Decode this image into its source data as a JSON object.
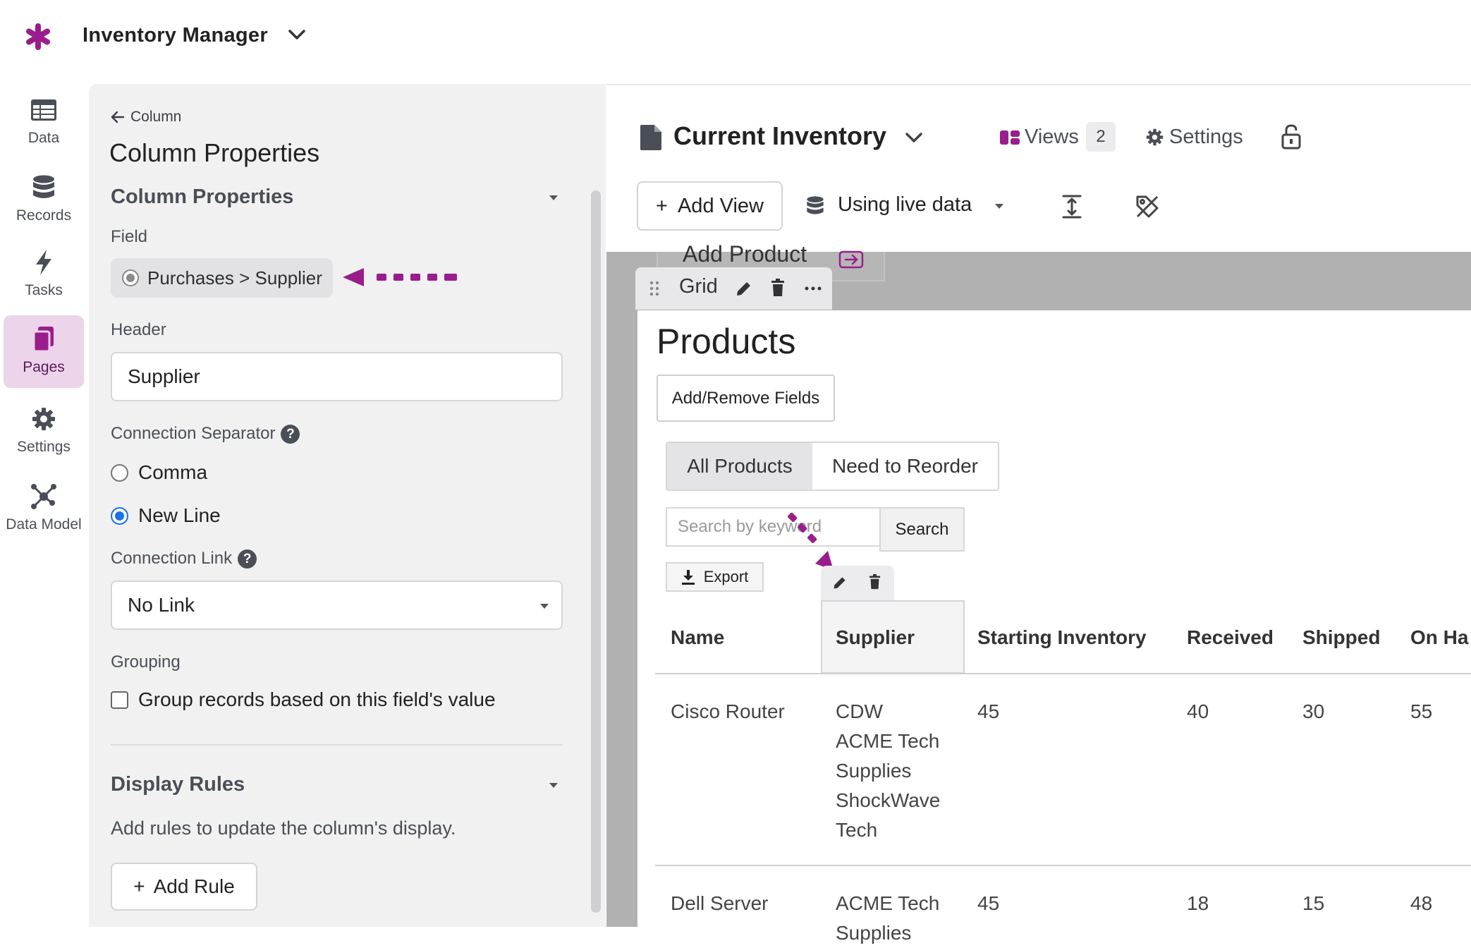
{
  "app": {
    "title": "Inventory Manager",
    "accent": "#9b1c8c"
  },
  "nav": {
    "items": [
      {
        "label": "Data",
        "icon": "table-icon"
      },
      {
        "label": "Records",
        "icon": "database-icon"
      },
      {
        "label": "Tasks",
        "icon": "bolt-icon"
      },
      {
        "label": "Pages",
        "icon": "pages-icon",
        "active": true
      },
      {
        "label": "Settings",
        "icon": "gear-icon"
      },
      {
        "label": "Data Model",
        "icon": "network-icon"
      }
    ]
  },
  "panel": {
    "breadcrumb": "Column",
    "title": "Column Properties",
    "section_title": "Column Properties",
    "field_label": "Field",
    "field_value": "Purchases > Supplier",
    "header_label": "Header",
    "header_value": "Supplier",
    "separator_label": "Connection Separator",
    "separator_options": [
      "Comma",
      "New Line"
    ],
    "separator_selected": "New Line",
    "link_label": "Connection Link",
    "link_value": "No Link",
    "grouping_label": "Grouping",
    "grouping_option": "Group records based on this field's value",
    "display_rules_title": "Display Rules",
    "display_rules_desc": "Add rules to update the column's display.",
    "add_rule": "Add Rule"
  },
  "builder": {
    "view_title": "Current Inventory",
    "views_label": "Views",
    "views_count": "2",
    "settings_label": "Settings",
    "add_view": "Add View",
    "live_data": "Using live data",
    "add_product": "Add Product",
    "grid_label": "Grid",
    "products_title": "Products",
    "add_remove_fields": "Add/Remove Fields",
    "tabs": [
      "All Products",
      "Need to Reorder"
    ],
    "search_placeholder": "Search by keyword",
    "search_button": "Search",
    "export": "Export",
    "columns": [
      "Name",
      "Supplier",
      "Starting Inventory",
      "Received",
      "Shipped",
      "On Ha"
    ],
    "rows": [
      {
        "name": "Cisco Router",
        "supplier": [
          "CDW",
          "ACME Tech",
          "Supplies",
          "ShockWave",
          "Tech"
        ],
        "starting": "45",
        "received": "40",
        "shipped": "30",
        "onhand": "55"
      },
      {
        "name": "Dell Server",
        "supplier": [
          "ACME Tech",
          "Supplies"
        ],
        "starting": "45",
        "received": "18",
        "shipped": "15",
        "onhand": "48"
      }
    ]
  }
}
